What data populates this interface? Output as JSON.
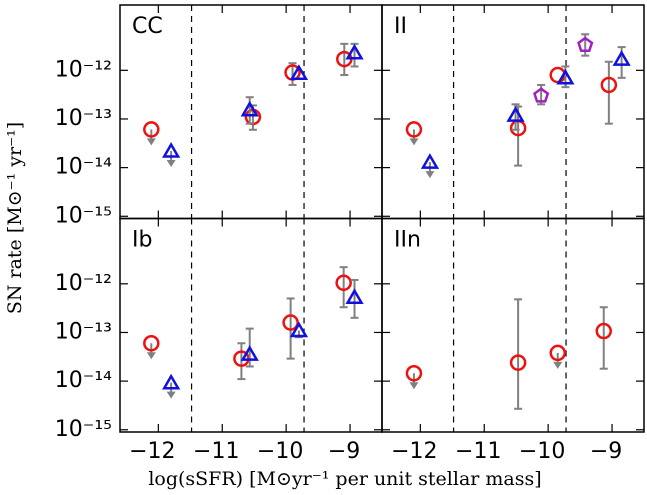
{
  "chart_data": {
    "type": "scatter",
    "xlabel": "log(sSFR)  [M⊙yr⁻¹ per unit stellar mass]",
    "ylabel": "SN rate  [M⊙⁻¹ yr⁻¹]",
    "xlim": [
      -12.6,
      -8.5
    ],
    "ylim": [
      9e-16,
      2.2e-11
    ],
    "log_y": true,
    "xticks": [
      {
        "value": -12,
        "label": "−12"
      },
      {
        "value": -11,
        "label": "−11"
      },
      {
        "value": -10,
        "label": "−10"
      },
      {
        "value": -9,
        "label": "−9"
      }
    ],
    "yticks": [
      {
        "value": 1e-15,
        "label": "10⁻¹⁵"
      },
      {
        "value": 1e-14,
        "label": "10⁻¹⁴"
      },
      {
        "value": 1e-13,
        "label": "10⁻¹³"
      },
      {
        "value": 1e-12,
        "label": "10⁻¹²"
      }
    ],
    "vlines": [
      -11.48,
      -9.72
    ],
    "errorbar_color": "#808080",
    "panels": [
      {
        "title": "CC",
        "series": [
          {
            "color": "#ee1111",
            "marker": "circle",
            "x": [
              -12.11,
              -10.52,
              -9.9,
              -9.09
            ],
            "values": [
              6.1e-14,
              1.1e-13,
              9e-13,
              1.7e-12
            ],
            "lower": [
              null,
              6e-14,
              5e-13,
              8e-13
            ],
            "upper": [
              null,
              1.9e-13,
              1.4e-12,
              3.5e-12
            ],
            "upper_limit": [
              true,
              false,
              false,
              false
            ]
          },
          {
            "color": "#1111dd",
            "marker": "triangle",
            "x": [
              -11.8,
              -10.57,
              -9.8,
              -8.93
            ],
            "values": [
              2.2e-14,
              1.55e-13,
              8.7e-13,
              2.3e-12
            ],
            "lower": [
              null,
              8e-14,
              null,
              1.2e-12
            ],
            "upper": [
              null,
              2.8e-13,
              null,
              3.5e-12
            ],
            "upper_limit": [
              true,
              false,
              false,
              false
            ]
          }
        ]
      },
      {
        "title": "II",
        "series": [
          {
            "color": "#ee1111",
            "marker": "circle",
            "x": [
              -12.1,
              -10.47,
              -9.85,
              -9.05
            ],
            "values": [
              6.1e-14,
              6.5e-14,
              8e-13,
              5e-13
            ],
            "lower": [
              null,
              1.1e-14,
              null,
              8e-14
            ],
            "upper": [
              null,
              1.8e-13,
              null,
              1.5e-12
            ],
            "upper_limit": [
              true,
              false,
              false,
              false
            ]
          },
          {
            "color": "#1111dd",
            "marker": "triangle",
            "x": [
              -11.85,
              -10.51,
              -9.73,
              -8.85
            ],
            "values": [
              1.3e-14,
              1.2e-13,
              7e-13,
              1.7e-12
            ],
            "lower": [
              null,
              6e-14,
              4.5e-13,
              7e-13
            ],
            "upper": [
              null,
              2e-13,
              1.2e-12,
              3e-12
            ],
            "upper_limit": [
              true,
              false,
              false,
              false
            ]
          },
          {
            "color": "#a020c0",
            "marker": "pentagon",
            "x": [
              -10.11,
              -9.42
            ],
            "values": [
              3e-13,
              3.3e-12
            ],
            "lower": [
              2e-13,
              2e-12
            ],
            "upper": [
              5e-13,
              5.5e-12
            ],
            "upper_limit": [
              false,
              false
            ]
          }
        ]
      },
      {
        "title": "Ib",
        "series": [
          {
            "color": "#ee1111",
            "marker": "circle",
            "x": [
              -12.11,
              -10.7,
              -9.93,
              -9.1
            ],
            "values": [
              6e-14,
              2.9e-14,
              1.6e-13,
              1.05e-12
            ],
            "lower": [
              null,
              1.1e-14,
              2.9e-14,
              3.3e-13
            ],
            "upper": [
              null,
              6e-14,
              5e-13,
              2.2e-12
            ],
            "upper_limit": [
              true,
              false,
              false,
              false
            ]
          },
          {
            "color": "#1111dd",
            "marker": "triangle",
            "x": [
              -11.8,
              -10.57,
              -9.8,
              -8.93
            ],
            "values": [
              9.3e-15,
              3.6e-14,
              1.1e-13,
              5.3e-13
            ],
            "lower": [
              null,
              2e-14,
              8e-14,
              2e-13
            ],
            "upper": [
              null,
              1.2e-13,
              null,
              1.2e-12
            ],
            "upper_limit": [
              true,
              false,
              false,
              false
            ]
          }
        ]
      },
      {
        "title": "IIn",
        "series": [
          {
            "color": "#ee1111",
            "marker": "circle",
            "x": [
              -12.1,
              -10.47,
              -9.85,
              -9.13
            ],
            "values": [
              1.45e-14,
              2.4e-14,
              3.8e-14,
              1.07e-13
            ],
            "lower": [
              null,
              2.7e-15,
              null,
              1.8e-14
            ],
            "upper": [
              null,
              4.8e-13,
              null,
              3.3e-13
            ],
            "upper_limit": [
              true,
              false,
              true,
              false
            ]
          }
        ]
      }
    ]
  }
}
